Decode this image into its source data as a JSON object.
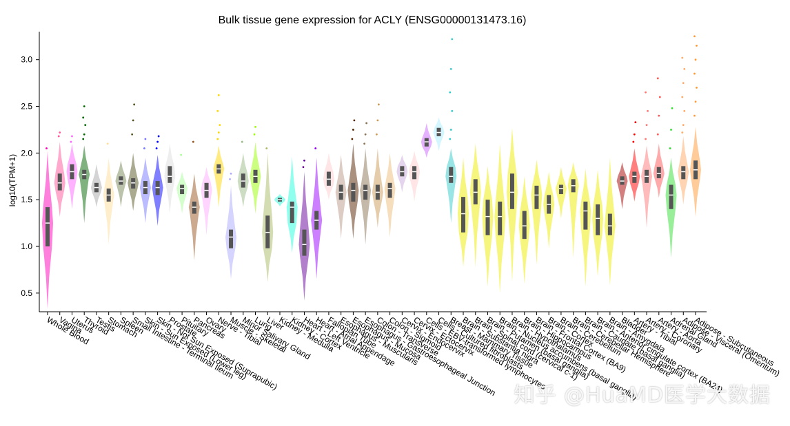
{
  "chart_data": {
    "type": "violin",
    "title": "Bulk tissue gene expression for ACLY (ENSG00000131473.16)",
    "xlabel": "",
    "ylabel": "log10(TPM+1)",
    "ylim": [
      0.3,
      3.3
    ],
    "yticks": [
      0.5,
      1.0,
      1.5,
      2.0,
      2.5,
      3.0
    ],
    "ytick_labels": [
      "0.5",
      "1.0",
      "1.5",
      "2.0",
      "2.5",
      "3.0"
    ],
    "grid": false,
    "series": [
      {
        "tissue": "Adipose - Subcutaneous",
        "color": "#FF9933",
        "min": 1.32,
        "q1": 1.72,
        "median": 1.82,
        "q3": 1.92,
        "max": 2.28,
        "outliers": [
          2.4,
          2.55,
          2.7,
          2.85,
          3.0,
          3.15,
          3.25
        ]
      },
      {
        "tissue": "Adipose - Visceral (Omentum)",
        "color": "#FFAA66",
        "min": 1.45,
        "q1": 1.72,
        "median": 1.8,
        "q3": 1.86,
        "max": 2.18,
        "outliers": [
          2.22,
          2.3,
          2.45,
          2.6,
          2.75,
          2.9,
          3.02
        ]
      },
      {
        "tissue": "Adrenal Gland",
        "color": "#33DD33",
        "min": 0.88,
        "q1": 1.4,
        "median": 1.55,
        "q3": 1.66,
        "max": 1.95,
        "outliers": [
          2.05,
          2.25,
          2.48
        ]
      },
      {
        "tissue": "Artery - Aorta",
        "color": "#FF5555",
        "min": 1.52,
        "q1": 1.73,
        "median": 1.78,
        "q3": 1.85,
        "max": 2.1,
        "outliers": [
          2.2,
          2.4,
          2.6,
          2.8
        ]
      },
      {
        "tissue": "Artery - Coronary",
        "color": "#FF7777",
        "min": 1.2,
        "q1": 1.68,
        "median": 1.75,
        "q3": 1.82,
        "max": 2.08,
        "outliers": [
          2.15,
          2.3,
          2.45,
          2.65
        ]
      },
      {
        "tissue": "Artery - Tibial",
        "color": "#FF0000",
        "min": 1.48,
        "q1": 1.68,
        "median": 1.75,
        "q3": 1.8,
        "max": 2.05,
        "outliers": [
          2.12,
          2.2,
          2.33
        ]
      },
      {
        "tissue": "Bladder",
        "color": "#AA0000",
        "min": 1.4,
        "q1": 1.66,
        "median": 1.7,
        "q3": 1.75,
        "max": 1.9,
        "outliers": []
      },
      {
        "tissue": "Brain - Amygdala",
        "color": "#EEEE00",
        "min": 0.58,
        "q1": 1.12,
        "median": 1.22,
        "q3": 1.35,
        "max": 1.95,
        "outliers": []
      },
      {
        "tissue": "Brain - Anterior cingulate cortex (BA24)",
        "color": "#EEEE00",
        "min": 0.68,
        "q1": 1.12,
        "median": 1.3,
        "q3": 1.45,
        "max": 1.82,
        "outliers": []
      },
      {
        "tissue": "Brain - Caudate (basal ganglia)",
        "color": "#EEEE00",
        "min": 0.57,
        "q1": 1.18,
        "median": 1.38,
        "q3": 1.48,
        "max": 1.83,
        "outliers": []
      },
      {
        "tissue": "Brain - Cerebellar Hemisphere",
        "color": "#EEEE00",
        "min": 0.88,
        "q1": 1.58,
        "median": 1.65,
        "q3": 1.72,
        "max": 1.9,
        "outliers": []
      },
      {
        "tissue": "Brain - Cerebellum",
        "color": "#EEEE00",
        "min": 1.3,
        "q1": 1.56,
        "median": 1.62,
        "q3": 1.66,
        "max": 1.85,
        "outliers": []
      },
      {
        "tissue": "Brain - Cortex",
        "color": "#EEEE00",
        "min": 0.98,
        "q1": 1.35,
        "median": 1.45,
        "q3": 1.55,
        "max": 1.8,
        "outliers": []
      },
      {
        "tissue": "Brain - Frontal Cortex (BA9)",
        "color": "#EEEE00",
        "min": 0.8,
        "q1": 1.4,
        "median": 1.55,
        "q3": 1.65,
        "max": 1.93,
        "outliers": []
      },
      {
        "tissue": "Brain - Hippocampus",
        "color": "#EEEE00",
        "min": 0.6,
        "q1": 1.08,
        "median": 1.22,
        "q3": 1.38,
        "max": 1.75,
        "outliers": []
      },
      {
        "tissue": "Brain - Hypothalamus",
        "color": "#EEEE00",
        "min": 0.62,
        "q1": 1.4,
        "median": 1.58,
        "q3": 1.78,
        "max": 2.27,
        "outliers": []
      },
      {
        "tissue": "Brain - Nucleus accumbens (basal ganglia)",
        "color": "#EEEE00",
        "min": 0.5,
        "q1": 1.12,
        "median": 1.32,
        "q3": 1.48,
        "max": 2.1,
        "outliers": []
      },
      {
        "tissue": "Brain - Putamen (basal ganglia)",
        "color": "#EEEE00",
        "min": 0.57,
        "q1": 1.12,
        "median": 1.32,
        "q3": 1.5,
        "max": 1.86,
        "outliers": []
      },
      {
        "tissue": "Brain - Spinal cord (cervical c-1)",
        "color": "#EEEE00",
        "min": 0.78,
        "q1": 1.45,
        "median": 1.58,
        "q3": 1.72,
        "max": 2.1,
        "outliers": []
      },
      {
        "tissue": "Brain - Substantia nigra",
        "color": "#EEEE00",
        "min": 0.78,
        "q1": 1.15,
        "median": 1.35,
        "q3": 1.53,
        "max": 1.95,
        "outliers": []
      },
      {
        "tissue": "Breast - Mammary Tissue",
        "color": "#33CCCC",
        "min": 1.25,
        "q1": 1.68,
        "median": 1.75,
        "q3": 1.85,
        "max": 2.05,
        "outliers": [
          2.15,
          2.25,
          2.45,
          2.65,
          2.9,
          3.22
        ]
      },
      {
        "tissue": "Cells - Cultured fibroblasts",
        "color": "#AAEEFF",
        "min": 2.02,
        "q1": 2.18,
        "median": 2.22,
        "q3": 2.27,
        "max": 2.38,
        "outliers": []
      },
      {
        "tissue": "Cells - EBV-transformed lymphocytes",
        "color": "#CC66FF",
        "min": 1.95,
        "q1": 2.07,
        "median": 2.12,
        "q3": 2.16,
        "max": 2.32,
        "outliers": []
      },
      {
        "tissue": "Cervix - Ectocervix",
        "color": "#FFCCCC",
        "min": 1.48,
        "q1": 1.72,
        "median": 1.8,
        "q3": 1.86,
        "max": 2.02,
        "outliers": []
      },
      {
        "tissue": "Cervix - Endocervix",
        "color": "#CCAADD",
        "min": 1.58,
        "q1": 1.75,
        "median": 1.8,
        "q3": 1.86,
        "max": 1.98,
        "outliers": []
      },
      {
        "tissue": "Colon - Sigmoid",
        "color": "#EEBB77",
        "min": 1.1,
        "q1": 1.52,
        "median": 1.62,
        "q3": 1.68,
        "max": 2.0,
        "outliers": []
      },
      {
        "tissue": "Colon - Transverse",
        "color": "#CC9955",
        "min": 1.2,
        "q1": 1.5,
        "median": 1.58,
        "q3": 1.66,
        "max": 2.05,
        "outliers": [
          2.2,
          2.35,
          2.52
        ]
      },
      {
        "tissue": "Esophagus - Gastroesophageal Junction",
        "color": "#8B7355",
        "min": 1.02,
        "q1": 1.5,
        "median": 1.6,
        "q3": 1.66,
        "max": 2.05,
        "outliers": [
          2.1,
          2.2,
          2.32
        ]
      },
      {
        "tissue": "Esophagus - Mucosa",
        "color": "#552200",
        "min": 1.08,
        "q1": 1.48,
        "median": 1.6,
        "q3": 1.68,
        "max": 2.1,
        "outliers": [
          2.15,
          2.25,
          2.35
        ]
      },
      {
        "tissue": "Esophagus - Muscularis",
        "color": "#BB9988",
        "min": 1.08,
        "q1": 1.5,
        "median": 1.58,
        "q3": 1.66,
        "max": 1.98,
        "outliers": []
      },
      {
        "tissue": "Fallopian Tube",
        "color": "#FFCCCC",
        "min": 1.5,
        "q1": 1.65,
        "median": 1.72,
        "q3": 1.8,
        "max": 2.0,
        "outliers": []
      },
      {
        "tissue": "Heart - Atrial Appendage",
        "color": "#9900FF",
        "min": 0.65,
        "q1": 1.18,
        "median": 1.28,
        "q3": 1.38,
        "max": 1.95,
        "outliers": [
          2.05
        ]
      },
      {
        "tissue": "Heart - Left Ventricle",
        "color": "#660099",
        "min": 0.42,
        "q1": 0.9,
        "median": 1.02,
        "q3": 1.18,
        "max": 1.8,
        "outliers": [
          1.85,
          1.92
        ]
      },
      {
        "tissue": "Kidney - Cortex",
        "color": "#22FFDD",
        "min": 0.93,
        "q1": 1.25,
        "median": 1.42,
        "q3": 1.48,
        "max": 1.96,
        "outliers": []
      },
      {
        "tissue": "Kidney - Medulla",
        "color": "#22FFDD",
        "min": 1.43,
        "q1": 1.48,
        "median": 1.5,
        "q3": 1.52,
        "max": 1.56,
        "outliers": []
      },
      {
        "tissue": "Liver",
        "color": "#AABB66",
        "min": 0.62,
        "q1": 0.98,
        "median": 1.15,
        "q3": 1.33,
        "max": 2.0,
        "outliers": [
          2.05
        ]
      },
      {
        "tissue": "Lung",
        "color": "#99FF00",
        "min": 1.35,
        "q1": 1.68,
        "median": 1.75,
        "q3": 1.82,
        "max": 2.12,
        "outliers": [
          2.2,
          2.28
        ]
      },
      {
        "tissue": "Minor Salivary Gland",
        "color": "#99BB88",
        "min": 1.42,
        "q1": 1.63,
        "median": 1.7,
        "q3": 1.78,
        "max": 2.0,
        "outliers": [
          2.12
        ]
      },
      {
        "tissue": "Muscle - Skeletal",
        "color": "#AAAAFF",
        "min": 0.65,
        "q1": 0.98,
        "median": 1.1,
        "q3": 1.18,
        "max": 1.65,
        "outliers": [
          1.72,
          1.78
        ]
      },
      {
        "tissue": "Nerve - Tibial",
        "color": "#FFD700",
        "min": 1.42,
        "q1": 1.78,
        "median": 1.83,
        "q3": 1.88,
        "max": 2.08,
        "outliers": [
          2.15,
          2.22,
          2.3,
          2.45,
          2.62
        ]
      },
      {
        "tissue": "Ovary",
        "color": "#FFAAFF",
        "min": 1.12,
        "q1": 1.52,
        "median": 1.6,
        "q3": 1.68,
        "max": 1.85,
        "outliers": []
      },
      {
        "tissue": "Pancreas",
        "color": "#995522",
        "min": 0.85,
        "q1": 1.35,
        "median": 1.42,
        "q3": 1.48,
        "max": 1.78,
        "outliers": [
          2.12
        ]
      },
      {
        "tissue": "Pituitary",
        "color": "#AAFF99",
        "min": 1.35,
        "q1": 1.56,
        "median": 1.62,
        "q3": 1.66,
        "max": 1.8,
        "outliers": [
          1.98
        ]
      },
      {
        "tissue": "Prostate",
        "color": "#DDDDDD",
        "min": 1.35,
        "q1": 1.68,
        "median": 1.75,
        "q3": 1.86,
        "max": 2.1,
        "outliers": []
      },
      {
        "tissue": "Skin - Not Sun Exposed (Suprapubic)",
        "color": "#0000FF",
        "min": 1.22,
        "q1": 1.55,
        "median": 1.63,
        "q3": 1.7,
        "max": 1.98,
        "outliers": [
          2.05,
          2.12,
          2.18
        ]
      },
      {
        "tissue": "Skin - Sun Exposed (Lower leg)",
        "color": "#7777FF",
        "min": 1.25,
        "q1": 1.56,
        "median": 1.63,
        "q3": 1.7,
        "max": 1.95,
        "outliers": [
          2.05,
          2.15
        ]
      },
      {
        "tissue": "Small Intestine - Terminal Ileum",
        "color": "#555522",
        "min": 1.38,
        "q1": 1.62,
        "median": 1.68,
        "q3": 1.73,
        "max": 2.0,
        "outliers": [
          2.2,
          2.35,
          2.52
        ]
      },
      {
        "tissue": "Spleen",
        "color": "#778855",
        "min": 1.42,
        "q1": 1.66,
        "median": 1.7,
        "q3": 1.75,
        "max": 1.92,
        "outliers": []
      },
      {
        "tissue": "Stomach",
        "color": "#FFDD99",
        "min": 1.02,
        "q1": 1.48,
        "median": 1.55,
        "q3": 1.62,
        "max": 1.95,
        "outliers": [
          2.1
        ]
      },
      {
        "tissue": "Testis",
        "color": "#AAAAAA",
        "min": 1.42,
        "q1": 1.58,
        "median": 1.63,
        "q3": 1.68,
        "max": 1.88,
        "outliers": []
      },
      {
        "tissue": "Thyroid",
        "color": "#006600",
        "min": 1.25,
        "q1": 1.72,
        "median": 1.77,
        "q3": 1.82,
        "max": 2.08,
        "outliers": [
          2.15,
          2.2,
          2.3,
          2.38,
          2.5
        ]
      },
      {
        "tissue": "Uterus",
        "color": "#FF66FF",
        "min": 1.4,
        "q1": 1.72,
        "median": 1.8,
        "q3": 1.88,
        "max": 2.1,
        "outliers": [
          2.12,
          2.18
        ]
      },
      {
        "tissue": "Vagina",
        "color": "#FF5599",
        "min": 1.32,
        "q1": 1.6,
        "median": 1.68,
        "q3": 1.78,
        "max": 2.12,
        "outliers": [
          2.18,
          2.22
        ]
      },
      {
        "tissue": "Whole Blood",
        "color": "#FF00BB",
        "min": 0.33,
        "q1": 1.0,
        "median": 1.25,
        "q3": 1.42,
        "max": 2.02,
        "outliers": [
          2.05
        ]
      }
    ]
  },
  "watermark": "知乎 @HuaMD医学大数据"
}
